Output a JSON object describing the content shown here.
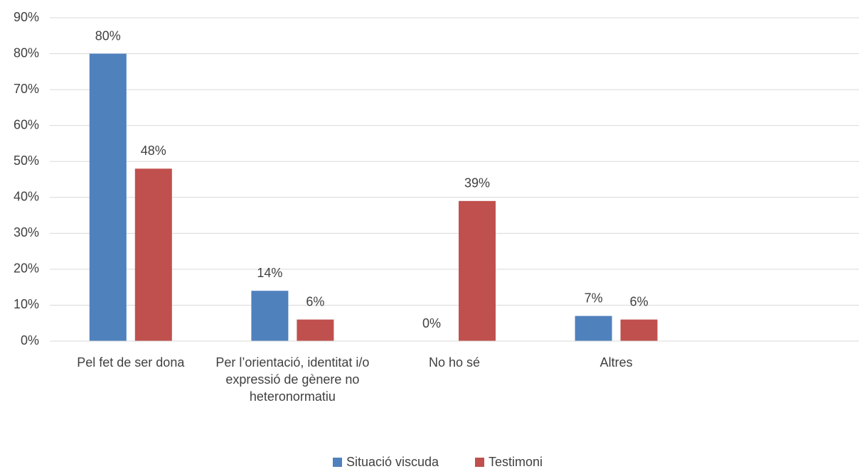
{
  "chart_data": {
    "type": "bar",
    "categories": [
      "Pel fet de ser dona",
      "Per l’orientació, identitat i/o expressió de gènere no heteronormatiu",
      "No ho sé",
      "Altres",
      null
    ],
    "series": [
      {
        "name": "Situació viscuda",
        "color": "#4f81bd",
        "values": [
          80,
          14,
          0,
          7,
          null
        ],
        "value_labels": [
          "80%",
          "14%",
          "0%",
          "7%",
          null
        ]
      },
      {
        "name": "Testimoni",
        "color": "#c0504d",
        "values": [
          48,
          6,
          39,
          6,
          null
        ],
        "value_labels": [
          "48%",
          "6%",
          "39%",
          "6%",
          null
        ]
      }
    ],
    "ylim": [
      0,
      90
    ],
    "yticks": [
      {
        "value": 0,
        "label": "0%"
      },
      {
        "value": 10,
        "label": "10%"
      },
      {
        "value": 20,
        "label": "20%"
      },
      {
        "value": 30,
        "label": "30%"
      },
      {
        "value": 40,
        "label": "40%"
      },
      {
        "value": 50,
        "label": "50%"
      },
      {
        "value": 60,
        "label": "60%"
      },
      {
        "value": 70,
        "label": "70%"
      },
      {
        "value": 80,
        "label": "80%"
      },
      {
        "value": 90,
        "label": "90%"
      }
    ],
    "grid": true,
    "legend": "bottom"
  }
}
